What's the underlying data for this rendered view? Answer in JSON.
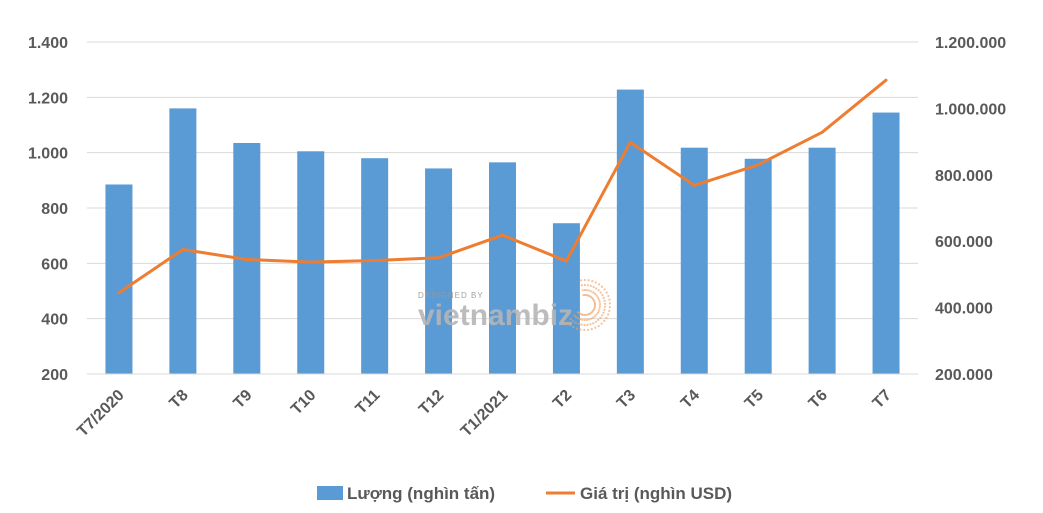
{
  "chart_data": {
    "type": "bar",
    "categories": [
      "T7/2020",
      "T8",
      "T9",
      "T10",
      "T11",
      "T12",
      "T1/2021",
      "T2",
      "T3",
      "T4",
      "T5",
      "T6",
      "T7"
    ],
    "series": [
      {
        "name": "Lượng (nghìn tấn)",
        "type": "bar",
        "axis": "left",
        "color": "#5B9BD5",
        "values": [
          885,
          1160,
          1035,
          1005,
          980,
          943,
          965,
          745,
          1228,
          1018,
          978,
          1018,
          1145
        ]
      },
      {
        "name": "Giá trị (nghìn USD)",
        "type": "line",
        "axis": "right",
        "color": "#ED7D31",
        "values": [
          445000,
          575000,
          545000,
          537000,
          542000,
          550000,
          618000,
          540000,
          898000,
          768000,
          830000,
          928000,
          1085000
        ]
      }
    ],
    "y_left": {
      "ylim": [
        200,
        1400
      ],
      "ticks": [
        200,
        400,
        600,
        800,
        1000,
        1200,
        1400
      ],
      "tick_labels": [
        "200",
        "400",
        "600",
        "800",
        "1.000",
        "1.200",
        "1.400"
      ]
    },
    "y_right": {
      "ylim": [
        200000,
        1200000
      ],
      "ticks": [
        200000,
        400000,
        600000,
        800000,
        1000000,
        1200000
      ],
      "tick_labels": [
        "200.000",
        "400.000",
        "600.000",
        "800.000",
        "1.000.000",
        "1.200.000"
      ]
    },
    "grid": true,
    "legend": "bottom-center",
    "title": "",
    "xlabel": "",
    "ylabel": ""
  },
  "watermark": {
    "small_text": "DESIGNED BY",
    "brand_text": "vietnambiz"
  }
}
